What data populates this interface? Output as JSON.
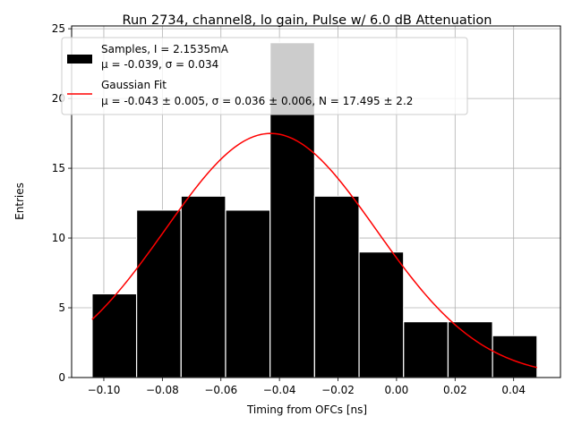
{
  "chart_data": {
    "type": "bar",
    "title": "Run 2734, channel8, lo gain, Pulse w/ 6.0 dB Attenuation",
    "xlabel": "Timing from OFCs [ns]",
    "ylabel": "Entries",
    "xlim": [
      -0.111,
      0.056
    ],
    "ylim": [
      0,
      25.2
    ],
    "xticks": [
      -0.1,
      -0.08,
      -0.06,
      -0.04,
      -0.02,
      0.0,
      0.02,
      0.04
    ],
    "xtick_labels": [
      "−0.10",
      "−0.08",
      "−0.06",
      "−0.04",
      "−0.02",
      "0.00",
      "0.02",
      "0.04"
    ],
    "yticks": [
      0,
      5,
      10,
      15,
      20,
      25
    ],
    "ytick_labels": [
      "0",
      "5",
      "10",
      "15",
      "20",
      "25"
    ],
    "grid": true,
    "bins": [
      {
        "left": -0.104,
        "right": -0.0888,
        "count": 6
      },
      {
        "left": -0.0888,
        "right": -0.0736,
        "count": 12
      },
      {
        "left": -0.0736,
        "right": -0.0584,
        "count": 13
      },
      {
        "left": -0.0584,
        "right": -0.0432,
        "count": 12
      },
      {
        "left": -0.0432,
        "right": -0.028,
        "count": 24
      },
      {
        "left": -0.028,
        "right": -0.0128,
        "count": 13
      },
      {
        "left": -0.0128,
        "right": 0.0024,
        "count": 9
      },
      {
        "left": 0.0024,
        "right": 0.0176,
        "count": 4
      },
      {
        "left": 0.0176,
        "right": 0.0328,
        "count": 4
      },
      {
        "left": 0.0328,
        "right": 0.048,
        "count": 3
      }
    ],
    "fit": {
      "type": "gaussian",
      "mu": -0.043,
      "sigma": 0.036,
      "N": 17.495,
      "x_range": [
        -0.104,
        0.048
      ],
      "color": "#ff0000"
    },
    "legend": {
      "position": "top-left",
      "entries": [
        {
          "name": "samples",
          "line1": "Samples, I = 2.1535mA",
          "line2": "μ = -0.039, σ = 0.034",
          "color": "#000000"
        },
        {
          "name": "gaussian-fit",
          "line1": "Gaussian Fit",
          "line2": "μ = -0.043 ± 0.005, σ = 0.036 ± 0.006, N = 17.495 ± 2.2",
          "color": "#ff0000"
        }
      ]
    },
    "colors": {
      "bar": "#000000",
      "bar_edge": "#ffffff",
      "grid": "#b0b0b0",
      "fit": "#ff0000"
    }
  }
}
